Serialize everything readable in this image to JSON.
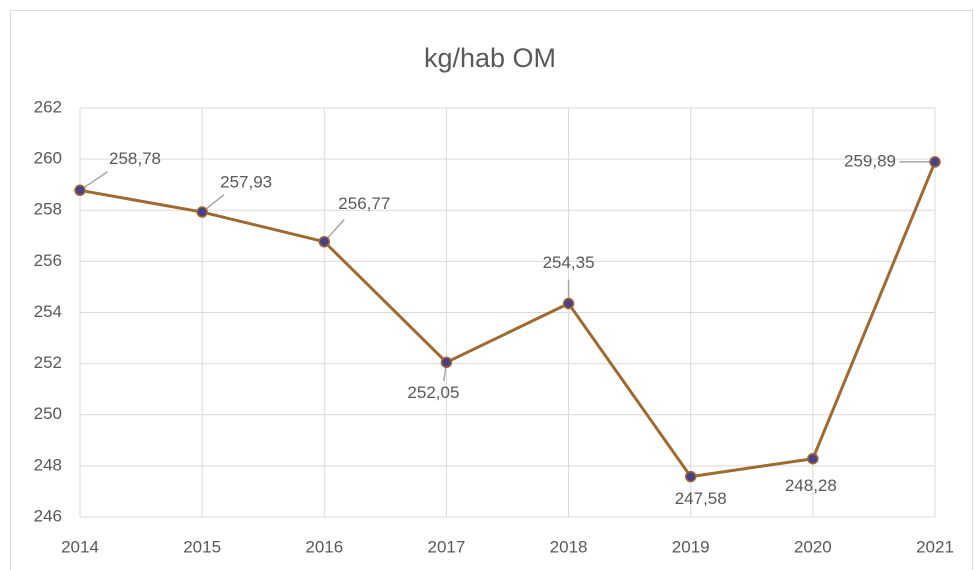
{
  "chart_data": {
    "type": "line",
    "title": "kg/hab OM",
    "categories": [
      "2014",
      "2015",
      "2016",
      "2017",
      "2018",
      "2019",
      "2020",
      "2021"
    ],
    "values": [
      258.78,
      257.93,
      256.77,
      252.05,
      254.35,
      247.58,
      248.28,
      259.89
    ],
    "value_labels": [
      "258,78",
      "257,93",
      "256,77",
      "252,05",
      "254,35",
      "247,58",
      "248,28",
      "259,89"
    ],
    "color": "#9e6a2f",
    "marker_color": "#4b3f8a",
    "ylim": [
      246,
      262
    ],
    "yticks": [
      246,
      248,
      250,
      252,
      254,
      256,
      258,
      260,
      262
    ],
    "grid": true
  }
}
